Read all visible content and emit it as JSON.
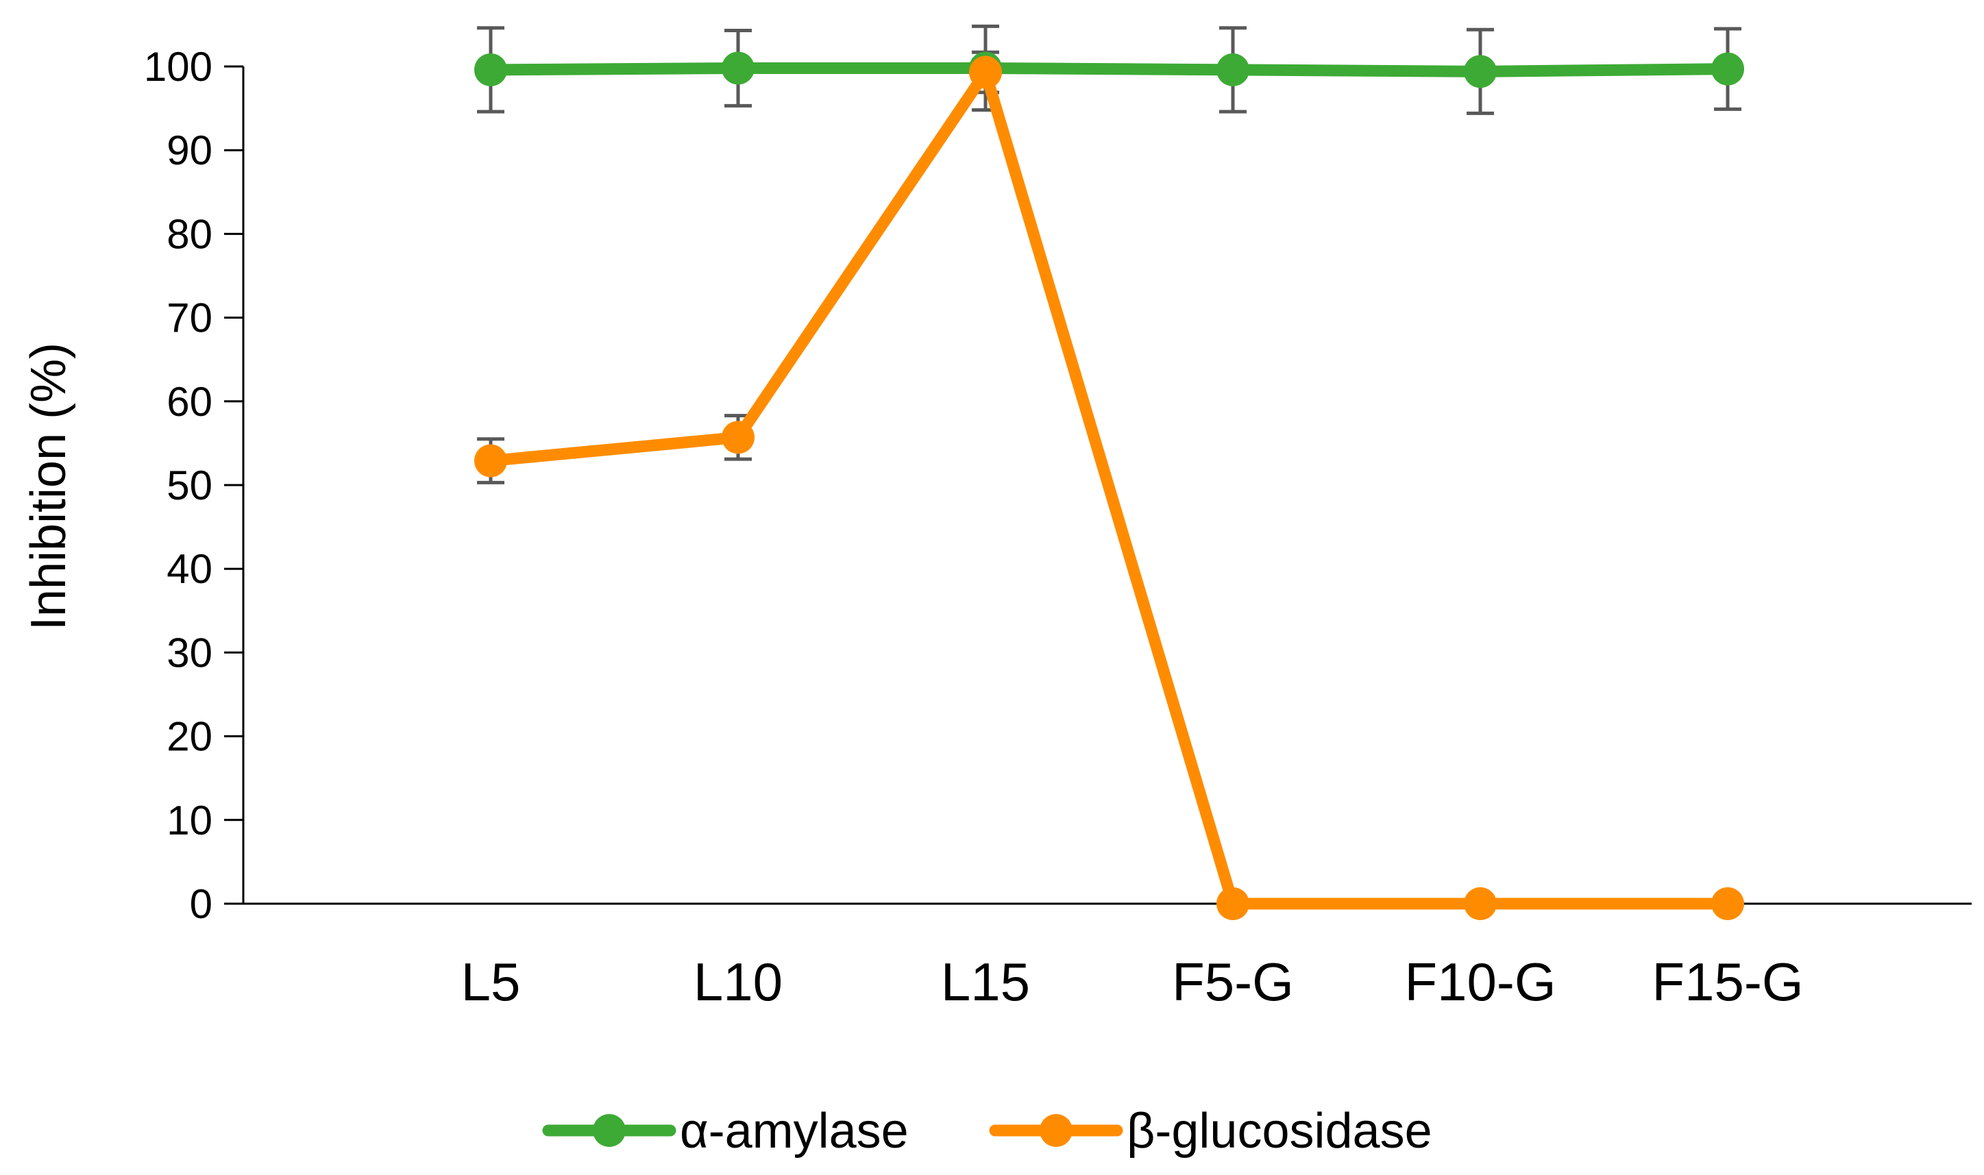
{
  "chart_data": {
    "type": "line",
    "title": "",
    "xlabel": "",
    "ylabel": "Inhibition (%)",
    "categories": [
      "L5",
      "L10",
      "L15",
      "F5-G",
      "F10-G",
      "F15-G"
    ],
    "ylim": [
      0,
      100
    ],
    "yticks": [
      0,
      10,
      20,
      30,
      40,
      50,
      60,
      70,
      80,
      90,
      100
    ],
    "grid": false,
    "legend_position": "bottom",
    "series": [
      {
        "name": "α-amylase",
        "color": "#3DAA35",
        "values": [
          99.6,
          99.8,
          99.8,
          99.6,
          99.4,
          99.7
        ],
        "error": [
          5.0,
          4.5,
          5.0,
          5.0,
          5.0,
          4.8
        ]
      },
      {
        "name": "β-glucosidase",
        "color": "#FF8C00",
        "values": [
          52.9,
          55.7,
          99.3,
          0,
          0,
          0
        ],
        "error": [
          2.6,
          2.6,
          2.4,
          0,
          0,
          0
        ]
      }
    ]
  }
}
